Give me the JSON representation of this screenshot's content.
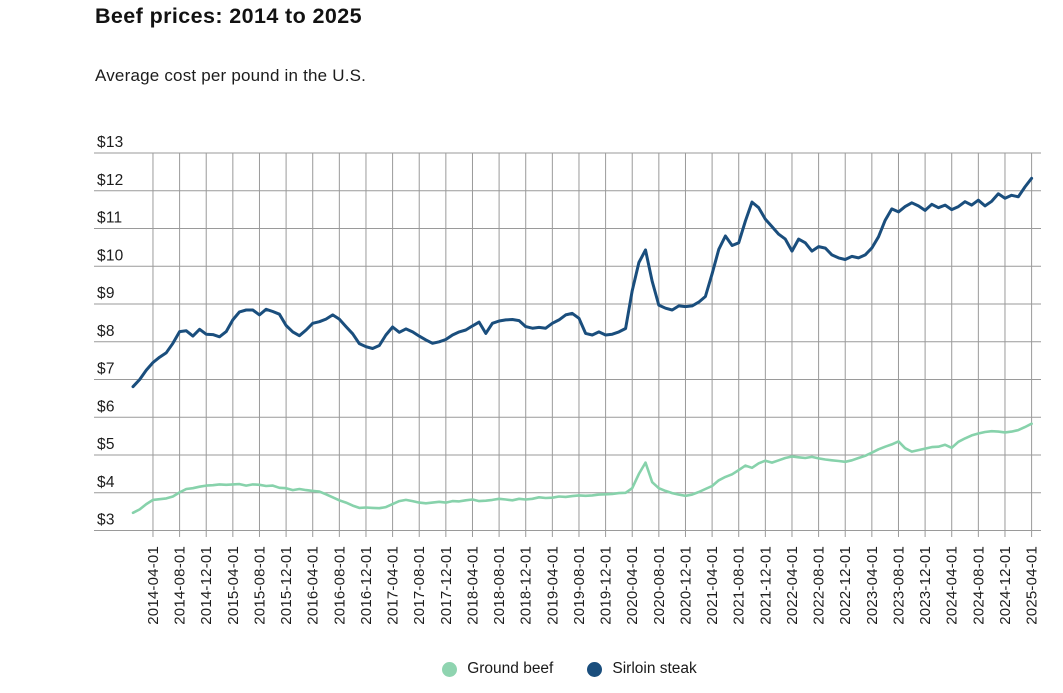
{
  "header": {
    "title": "Beef prices: 2014 to 2025",
    "subtitle": "Average cost per pound in the U.S."
  },
  "legend": {
    "items": [
      {
        "label": "Ground beef",
        "color": "#8fd4b0"
      },
      {
        "label": "Sirloin steak",
        "color": "#1a4e7d"
      }
    ]
  },
  "colors": {
    "grid": "#9a9a9a",
    "axis_text": "#1d1d1d",
    "ground_beef_line": "#87d2ab",
    "sirloin_line": "#1a4e7d"
  },
  "chart_data": {
    "type": "line",
    "title": "Beef prices: 2014 to 2025",
    "subtitle": "Average cost per pound in the U.S.",
    "xlabel": "",
    "ylabel": "",
    "ylim": [
      3,
      13
    ],
    "y_tick_step": 1,
    "y_tick_labels": [
      "$3",
      "$4",
      "$5",
      "$6",
      "$7",
      "$8",
      "$9",
      "$10",
      "$11",
      "$12",
      "$13"
    ],
    "x_start_month": "2014-01",
    "x_interval_months": 1,
    "x_tick_labels": [
      "2014-04-01",
      "2014-08-01",
      "2014-12-01",
      "2015-04-01",
      "2015-08-01",
      "2015-12-01",
      "2016-04-01",
      "2016-08-01",
      "2016-12-01",
      "2017-04-01",
      "2017-08-01",
      "2017-12-01",
      "2018-04-01",
      "2018-08-01",
      "2018-12-01",
      "2019-04-01",
      "2019-08-01",
      "2019-12-01",
      "2020-04-01",
      "2020-08-01",
      "2020-12-01",
      "2021-04-01",
      "2021-08-01",
      "2021-12-01",
      "2022-04-01",
      "2022-08-01",
      "2022-12-01",
      "2023-04-01",
      "2023-08-01",
      "2023-12-01",
      "2024-04-01",
      "2024-08-01",
      "2024-12-01",
      "2025-04-01"
    ],
    "x_tick_first_month_index": 3,
    "x_tick_month_step": 4,
    "grid": true,
    "legend_position": "bottom",
    "series": [
      {
        "name": "Ground beef",
        "color": "#87d2ab",
        "values": [
          3.47,
          3.56,
          3.7,
          3.81,
          3.83,
          3.85,
          3.9,
          4.01,
          4.1,
          4.12,
          4.16,
          4.19,
          4.2,
          4.22,
          4.21,
          4.22,
          4.23,
          4.19,
          4.22,
          4.21,
          4.18,
          4.19,
          4.13,
          4.12,
          4.07,
          4.1,
          4.07,
          4.05,
          4.03,
          3.96,
          3.88,
          3.8,
          3.74,
          3.66,
          3.6,
          3.61,
          3.6,
          3.59,
          3.62,
          3.7,
          3.78,
          3.81,
          3.78,
          3.74,
          3.72,
          3.74,
          3.76,
          3.74,
          3.78,
          3.77,
          3.8,
          3.82,
          3.78,
          3.79,
          3.81,
          3.84,
          3.82,
          3.8,
          3.84,
          3.82,
          3.84,
          3.88,
          3.86,
          3.87,
          3.9,
          3.89,
          3.91,
          3.93,
          3.92,
          3.93,
          3.95,
          3.96,
          3.97,
          3.99,
          4.0,
          4.12,
          4.5,
          4.8,
          4.28,
          4.12,
          4.05,
          3.99,
          3.95,
          3.92,
          3.95,
          4.02,
          4.1,
          4.18,
          4.33,
          4.42,
          4.49,
          4.6,
          4.72,
          4.66,
          4.78,
          4.85,
          4.8,
          4.86,
          4.92,
          4.96,
          4.94,
          4.92,
          4.95,
          4.91,
          4.88,
          4.86,
          4.84,
          4.82,
          4.86,
          4.92,
          4.98,
          5.06,
          5.15,
          5.22,
          5.28,
          5.36,
          5.18,
          5.09,
          5.13,
          5.17,
          5.21,
          5.22,
          5.27,
          5.19,
          5.35,
          5.44,
          5.52,
          5.57,
          5.61,
          5.63,
          5.62,
          5.6,
          5.62,
          5.66,
          5.74,
          5.83
        ]
      },
      {
        "name": "Sirloin steak",
        "color": "#1a4e7d",
        "values": [
          6.81,
          7.0,
          7.25,
          7.45,
          7.59,
          7.71,
          7.96,
          8.27,
          8.29,
          8.15,
          8.33,
          8.2,
          8.19,
          8.13,
          8.27,
          8.58,
          8.79,
          8.84,
          8.84,
          8.71,
          8.86,
          8.8,
          8.73,
          8.43,
          8.26,
          8.16,
          8.31,
          8.49,
          8.53,
          8.6,
          8.71,
          8.6,
          8.4,
          8.21,
          7.95,
          7.87,
          7.82,
          7.9,
          8.18,
          8.39,
          8.25,
          8.34,
          8.26,
          8.15,
          8.05,
          7.96,
          8.0,
          8.06,
          8.18,
          8.26,
          8.31,
          8.42,
          8.52,
          8.22,
          8.49,
          8.55,
          8.58,
          8.59,
          8.56,
          8.4,
          8.36,
          8.38,
          8.36,
          8.49,
          8.58,
          8.71,
          8.75,
          8.62,
          8.22,
          8.18,
          8.26,
          8.18,
          8.2,
          8.26,
          8.35,
          9.35,
          10.1,
          10.43,
          9.6,
          8.97,
          8.89,
          8.84,
          8.95,
          8.93,
          8.95,
          9.05,
          9.2,
          9.8,
          10.45,
          10.8,
          10.55,
          10.62,
          11.2,
          11.7,
          11.55,
          11.25,
          11.05,
          10.85,
          10.72,
          10.4,
          10.72,
          10.62,
          10.4,
          10.52,
          10.48,
          10.3,
          10.22,
          10.18,
          10.26,
          10.22,
          10.3,
          10.48,
          10.78,
          11.22,
          11.52,
          11.44,
          11.58,
          11.68,
          11.6,
          11.48,
          11.64,
          11.55,
          11.62,
          11.5,
          11.58,
          11.71,
          11.62,
          11.75,
          11.6,
          11.72,
          11.92,
          11.8,
          11.88,
          11.84,
          12.1,
          12.33
        ]
      }
    ]
  }
}
